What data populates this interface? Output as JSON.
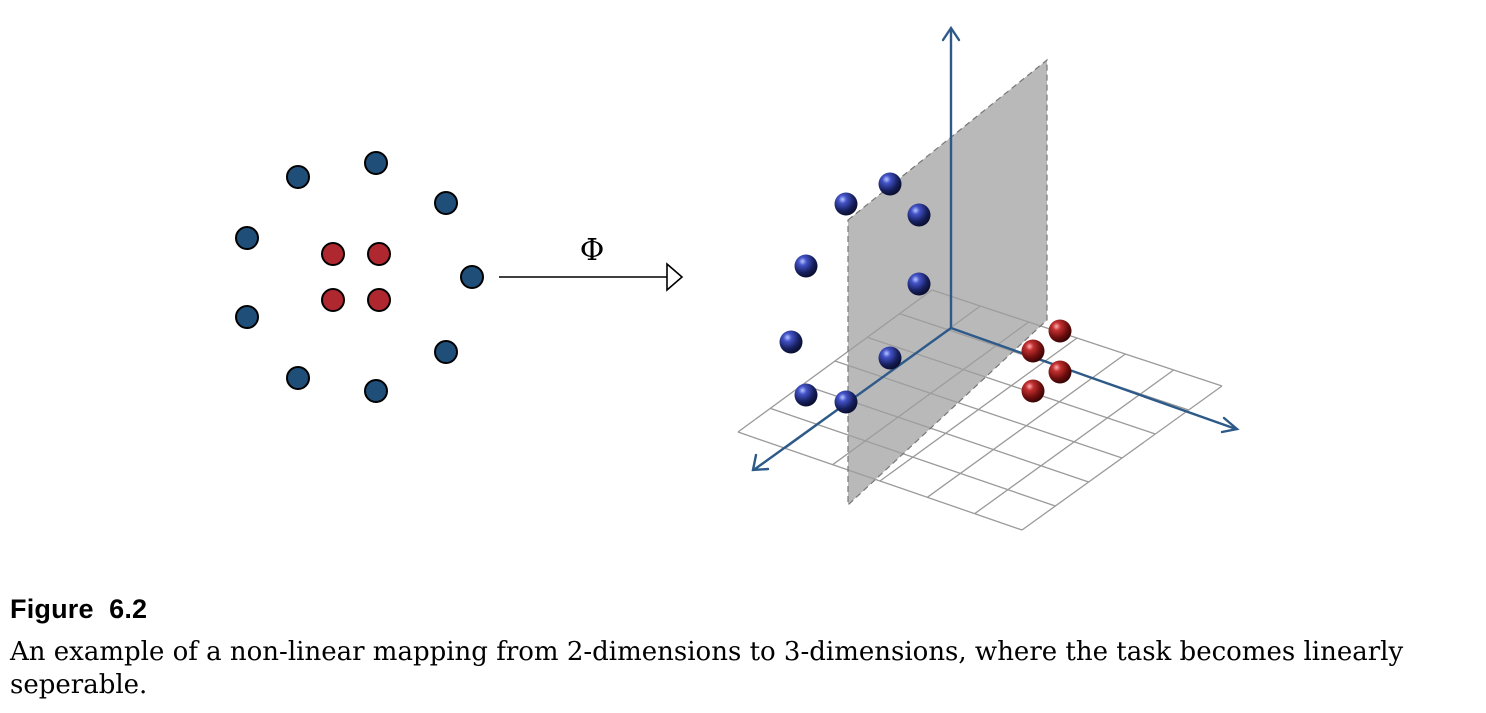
{
  "mapping": {
    "symbol": "Φ"
  },
  "caption": {
    "title": "Figure  6.2",
    "text": "An example of a non-linear mapping from 2-dimensions to 3-dimensions, where the task becomes linearly seperable."
  },
  "colors": {
    "blue_class": "#1f4e79",
    "red_class": "#b0282f",
    "axis": "#2e5a8a",
    "plane": "#9e9e9e",
    "grid": "#aaaaaa"
  },
  "classes": [
    "blue",
    "red"
  ]
}
